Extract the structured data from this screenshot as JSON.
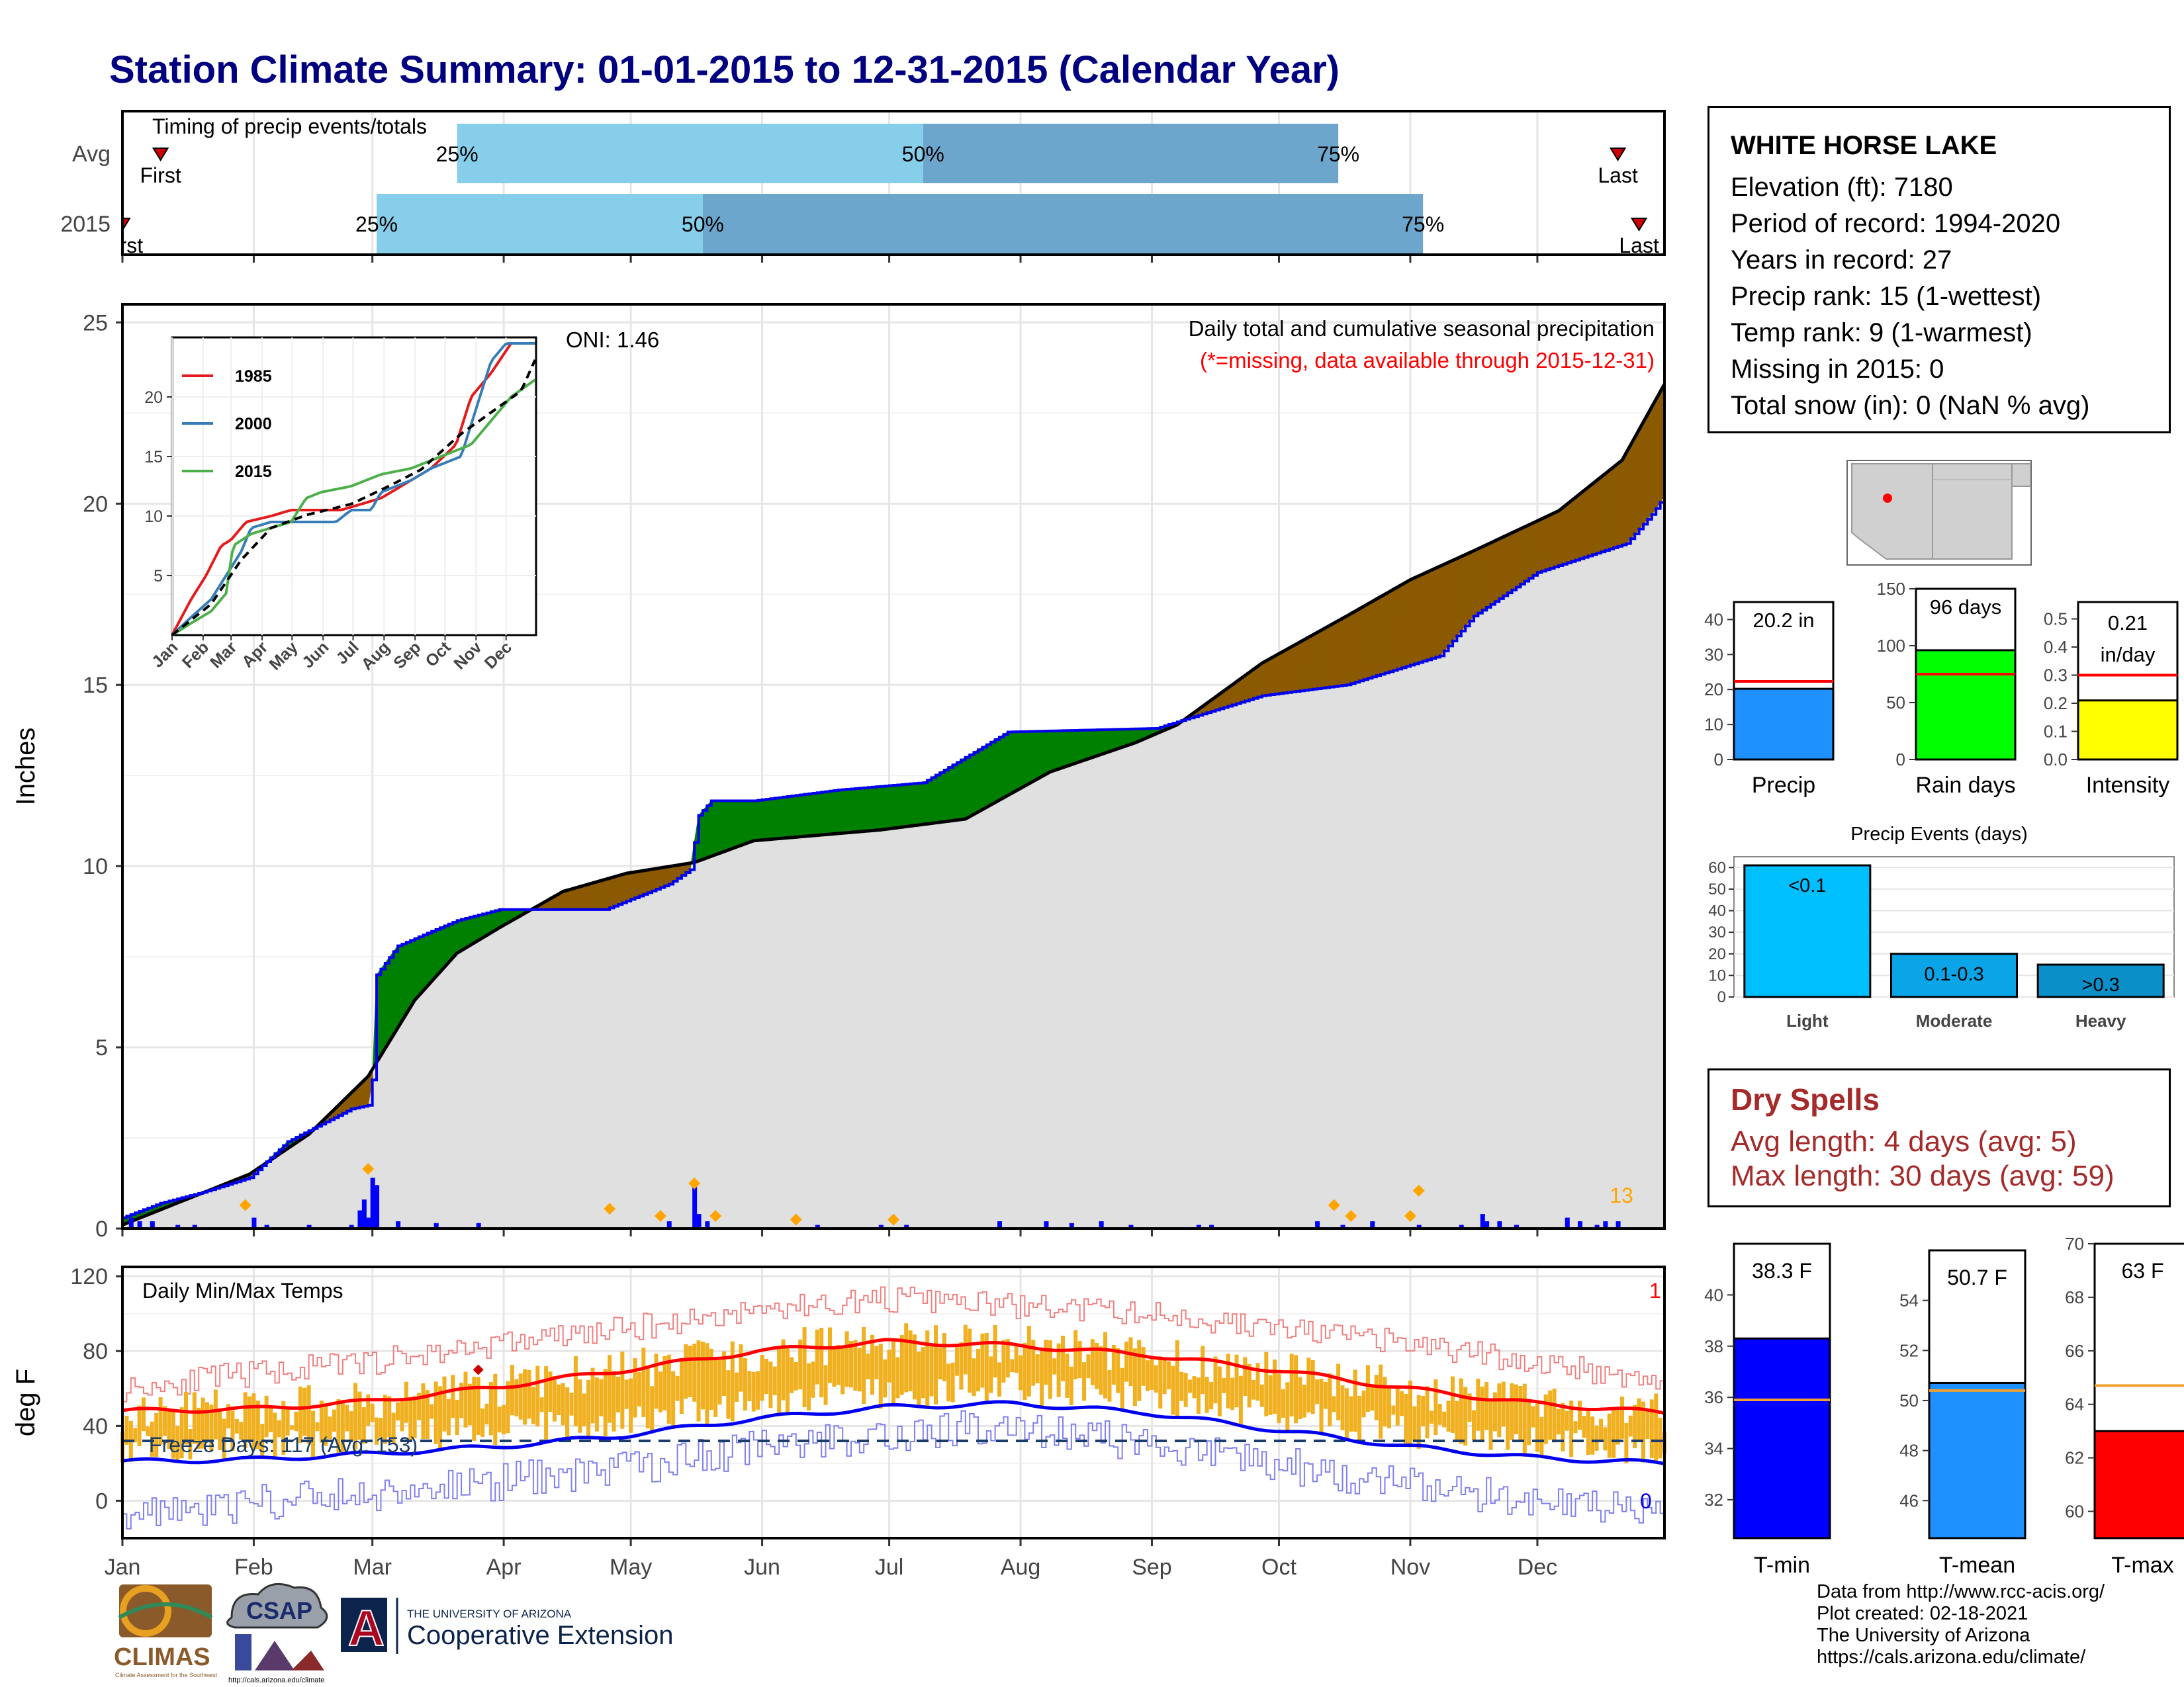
{
  "title": "Station Climate Summary: 01-01-2015 to 12-31-2015 (Calendar Year)",
  "timing_panel": {
    "title": "Timing of precip events/totals",
    "rows": [
      {
        "label": "Avg",
        "first_label": "First",
        "last_label": "Last",
        "first_day": 10,
        "last_day": 354,
        "p25_day": 80,
        "p50_day": 190,
        "p75_day": 288,
        "p25": "25%",
        "p50": "50%",
        "p75": "75%"
      },
      {
        "label": "2015",
        "first_label": "First",
        "last_label": "Last",
        "first_day": 1,
        "last_day": 359,
        "p25_day": 61,
        "p50_day": 138,
        "p75_day": 308,
        "p25": "25%",
        "p50": "50%",
        "p75": "75%"
      }
    ]
  },
  "precip_panel": {
    "ylabel": "Inches",
    "title": "Daily total and cumulative seasonal precipitation",
    "subtitle": "(*=missing, data available through 2015-12-31)",
    "oni": "ONI: 1.46",
    "corner_count": "13",
    "yticks": [
      "0",
      "5",
      "10",
      "15",
      "20",
      "25"
    ],
    "ylim": [
      0,
      25.5
    ]
  },
  "temp_panel": {
    "ylabel": "deg F",
    "title": "Daily Min/Max Temps",
    "freeze_label": "Freeze Days: 117 (Avg: 153)",
    "top_right_count": "1",
    "bottom_right_count": "0",
    "yticks": [
      "0",
      "40",
      "80",
      "120"
    ],
    "ylim": [
      -20,
      125
    ]
  },
  "months": [
    "Jan",
    "Feb",
    "Mar",
    "Apr",
    "May",
    "Jun",
    "Jul",
    "Aug",
    "Sep",
    "Oct",
    "Nov",
    "Dec"
  ],
  "inset": {
    "legend": [
      "1985",
      "2000",
      "2015"
    ],
    "yticks": [
      "5",
      "10",
      "15",
      "20"
    ],
    "xticks": [
      "Jan",
      "Feb",
      "Mar",
      "Apr",
      "May",
      "Jun",
      "Jul",
      "Aug",
      "Sep",
      "Oct",
      "Nov",
      "Dec"
    ]
  },
  "station": {
    "name": "WHITE HORSE LAKE",
    "lines": [
      "Elevation (ft): 7180",
      "Period of record: 1994-2020",
      "Years in record: 27",
      "Precip rank: 15 (1-wettest)",
      "Temp rank: 9 (1-warmest)",
      "Missing in 2015: 0",
      "Total snow (in): 0 (NaN % avg)"
    ]
  },
  "summary_bars": [
    {
      "label": "Precip",
      "value_text": "20.2 in",
      "value": 20.2,
      "avg": 22.3,
      "yticks": [
        "0",
        "10",
        "20",
        "30",
        "40"
      ],
      "ymax": 45,
      "color": "#1e90ff"
    },
    {
      "label": "Rain days",
      "value_text": "96 days",
      "value": 96,
      "avg": 75,
      "yticks": [
        "0",
        "50",
        "100",
        "150"
      ],
      "ymax": 150,
      "color": "#00ff00"
    },
    {
      "label": "Intensity",
      "value_text": "0.21 in/day",
      "value_lines": [
        "0.21",
        "in/day"
      ],
      "value": 0.21,
      "avg": 0.3,
      "yticks": [
        "0.0",
        "0.1",
        "0.2",
        "0.3",
        "0.4",
        "0.5"
      ],
      "ymax": 0.56,
      "color": "#ffff00"
    }
  ],
  "precip_events": {
    "title": "Precip Events (days)",
    "categories": [
      "Light",
      "Moderate",
      "Heavy"
    ],
    "bar_labels": [
      "<0.1",
      "0.1-0.3",
      ">0.3"
    ],
    "values": [
      61,
      20,
      15
    ],
    "yticks": [
      "0",
      "10",
      "20",
      "30",
      "40",
      "50",
      "60"
    ],
    "colors": [
      "#00bfff",
      "#0aa5e6",
      "#0a8fc8"
    ]
  },
  "dry_spells": {
    "title": "Dry Spells",
    "avg_length": "Avg length: 4 days (avg: 5)",
    "max_length": "Max length: 30 days (avg: 59)"
  },
  "temp_bars": [
    {
      "label": "T-min",
      "value_text": "38.3 F",
      "value": 38.3,
      "avg": 35.9,
      "yticks": [
        "32",
        "34",
        "36",
        "38",
        "40"
      ],
      "ymin": 30.5,
      "ymax": 42,
      "color": "#0000ff"
    },
    {
      "label": "T-mean",
      "value_text": "50.7 F",
      "value": 50.7,
      "avg": 50.4,
      "yticks": [
        "46",
        "48",
        "50",
        "52",
        "54"
      ],
      "ymin": 44.5,
      "ymax": 56,
      "color": "#1e90ff"
    },
    {
      "label": "T-max",
      "value_text": "63 F",
      "value": 63,
      "avg": 64.7,
      "yticks": [
        "60",
        "62",
        "64",
        "66",
        "68",
        "70"
      ],
      "ymin": 59,
      "ymax": 70,
      "color": "#ff0000"
    }
  ],
  "footer": {
    "lines": [
      "Data from http://www.rcc-acis.org/",
      "Plot created: 02-18-2021",
      "The University of Arizona",
      "https://cals.arizona.edu/climate/"
    ]
  },
  "logos": {
    "climas": "CLIMAS",
    "climas_sub": "Climate Assessment for the Southwest",
    "csap": "CSAP",
    "csap_url": "http://cals.arizona.edu/climate",
    "ua_letter": "A",
    "ua_small": "THE UNIVERSITY OF ARIZONA",
    "ua_big": "Cooperative Extension"
  },
  "chart_data": [
    {
      "type": "bar",
      "name_ref": "timing",
      "categories": [
        "Avg",
        "2015"
      ],
      "title": "Timing of precip events/totals"
    },
    {
      "type": "area",
      "title": "Daily total and cumulative seasonal precipitation",
      "ylabel": "Inches",
      "ylim": [
        0,
        25.5
      ],
      "cum_2015": [
        [
          1,
          0.3
        ],
        [
          10,
          0.7
        ],
        [
          20,
          1.0
        ],
        [
          31,
          1.4
        ],
        [
          40,
          2.4
        ],
        [
          55,
          3.3
        ],
        [
          59,
          3.4
        ],
        [
          60,
          4.1
        ],
        [
          61,
          7.0
        ],
        [
          66,
          7.8
        ],
        [
          80,
          8.5
        ],
        [
          90,
          8.8
        ],
        [
          100,
          8.8
        ],
        [
          115,
          8.8
        ],
        [
          130,
          9.5
        ],
        [
          135,
          9.9
        ],
        [
          137,
          11.4
        ],
        [
          140,
          11.8
        ],
        [
          150,
          11.8
        ],
        [
          170,
          12.1
        ],
        [
          190,
          12.3
        ],
        [
          210,
          13.7
        ],
        [
          245,
          13.8
        ],
        [
          270,
          14.7
        ],
        [
          290,
          15.0
        ],
        [
          312,
          15.8
        ],
        [
          320,
          16.9
        ],
        [
          335,
          18.1
        ],
        [
          356,
          18.9
        ],
        [
          362,
          19.7
        ],
        [
          365,
          20.2
        ]
      ],
      "cum_avg": [
        [
          1,
          0.1
        ],
        [
          31,
          1.5
        ],
        [
          45,
          2.6
        ],
        [
          59,
          4.2
        ],
        [
          70,
          6.3
        ],
        [
          80,
          7.6
        ],
        [
          90,
          8.3
        ],
        [
          105,
          9.3
        ],
        [
          120,
          9.8
        ],
        [
          136,
          10.1
        ],
        [
          150,
          10.7
        ],
        [
          180,
          11.0
        ],
        [
          200,
          11.3
        ],
        [
          220,
          12.6
        ],
        [
          240,
          13.4
        ],
        [
          250,
          13.9
        ],
        [
          270,
          15.6
        ],
        [
          290,
          16.9
        ],
        [
          305,
          17.9
        ],
        [
          320,
          18.7
        ],
        [
          340,
          19.8
        ],
        [
          355,
          21.2
        ],
        [
          365,
          23.3
        ]
      ],
      "daily_bars": [
        [
          3,
          0.3
        ],
        [
          5,
          0.2
        ],
        [
          8,
          0.2
        ],
        [
          14,
          0.1
        ],
        [
          18,
          0.1
        ],
        [
          32,
          0.3
        ],
        [
          35,
          0.1
        ],
        [
          45,
          0.1
        ],
        [
          55,
          0.1
        ],
        [
          57,
          0.5
        ],
        [
          58,
          0.8
        ],
        [
          59,
          0.3
        ],
        [
          60,
          1.4
        ],
        [
          61,
          1.2
        ],
        [
          66,
          0.2
        ],
        [
          75,
          0.15
        ],
        [
          85,
          0.15
        ],
        [
          130,
          0.2
        ],
        [
          136,
          1.2
        ],
        [
          137,
          0.4
        ],
        [
          139,
          0.2
        ],
        [
          165,
          0.1
        ],
        [
          180,
          0.1
        ],
        [
          186,
          0.1
        ],
        [
          208,
          0.2
        ],
        [
          219,
          0.2
        ],
        [
          225,
          0.15
        ],
        [
          232,
          0.2
        ],
        [
          239,
          0.1
        ],
        [
          255,
          0.1
        ],
        [
          258,
          0.1
        ],
        [
          283,
          0.2
        ],
        [
          289,
          0.1
        ],
        [
          296,
          0.2
        ],
        [
          307,
          0.1
        ],
        [
          317,
          0.1
        ],
        [
          322,
          0.4
        ],
        [
          323,
          0.2
        ],
        [
          326,
          0.2
        ],
        [
          330,
          0.1
        ],
        [
          342,
          0.3
        ],
        [
          345,
          0.2
        ],
        [
          349,
          0.1
        ],
        [
          351,
          0.2
        ],
        [
          354,
          0.2
        ]
      ],
      "extreme_markers": [
        [
          30,
          0.5
        ],
        [
          59,
          1.5
        ],
        [
          116,
          0.4
        ],
        [
          128,
          0.2
        ],
        [
          136,
          1.1
        ],
        [
          141,
          0.2
        ],
        [
          160,
          0.1
        ],
        [
          183,
          0.1
        ],
        [
          287,
          0.5
        ],
        [
          291,
          0.2
        ],
        [
          305,
          0.2
        ],
        [
          307,
          0.9
        ]
      ]
    },
    {
      "type": "line",
      "title": "Daily Min/Max Temps",
      "ylabel": "deg F",
      "ylim": [
        -20,
        125
      ],
      "avg_max": [
        [
          1,
          48
        ],
        [
          31,
          49
        ],
        [
          59,
          53
        ],
        [
          90,
          61
        ],
        [
          120,
          70
        ],
        [
          151,
          80
        ],
        [
          181,
          85
        ],
        [
          212,
          83
        ],
        [
          243,
          78
        ],
        [
          273,
          70
        ],
        [
          304,
          60
        ],
        [
          334,
          52
        ],
        [
          365,
          47
        ]
      ],
      "avg_min": [
        [
          1,
          21
        ],
        [
          31,
          22
        ],
        [
          59,
          25
        ],
        [
          90,
          29
        ],
        [
          120,
          35
        ],
        [
          151,
          44
        ],
        [
          181,
          50
        ],
        [
          212,
          52
        ],
        [
          243,
          47
        ],
        [
          273,
          38
        ],
        [
          304,
          29
        ],
        [
          334,
          23
        ],
        [
          365,
          20
        ]
      ],
      "record_max_env": [
        [
          1,
          60
        ],
        [
          31,
          68
        ],
        [
          59,
          74
        ],
        [
          90,
          84
        ],
        [
          120,
          92
        ],
        [
          151,
          102
        ],
        [
          181,
          108
        ],
        [
          212,
          104
        ],
        [
          243,
          100
        ],
        [
          273,
          92
        ],
        [
          304,
          84
        ],
        [
          334,
          74
        ],
        [
          365,
          64
        ]
      ],
      "record_min_env": [
        [
          1,
          -6
        ],
        [
          31,
          -2
        ],
        [
          59,
          4
        ],
        [
          90,
          10
        ],
        [
          120,
          18
        ],
        [
          151,
          28
        ],
        [
          181,
          36
        ],
        [
          212,
          40
        ],
        [
          243,
          30
        ],
        [
          273,
          20
        ],
        [
          304,
          8
        ],
        [
          334,
          0
        ],
        [
          365,
          -4
        ]
      ],
      "freeze_threshold": 32
    }
  ]
}
